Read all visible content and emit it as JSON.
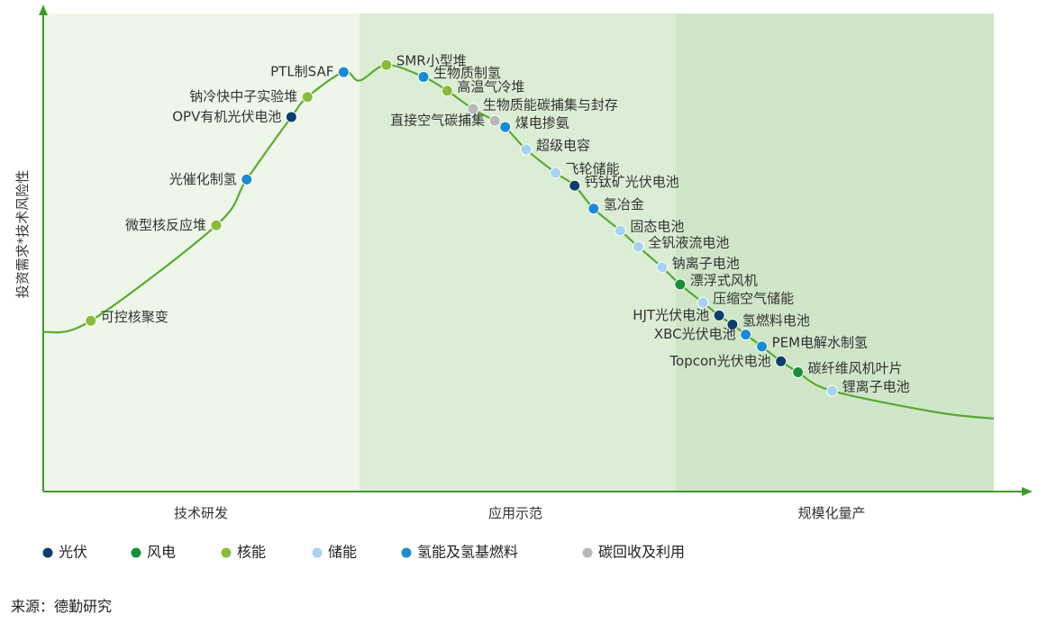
{
  "chart_data": {
    "type": "scatter",
    "title": "",
    "ylabel": "投资需求*技术风险性",
    "xlabel": "",
    "stages": [
      "技术研发",
      "应用示范",
      "规模化量产"
    ],
    "stage_colors": [
      "#eef6ea",
      "#dcedd6",
      "#cfe6c8"
    ],
    "curve_color": "#5aaa32",
    "xlim": [
      0,
      100
    ],
    "ylim": [
      0,
      100
    ],
    "series": [
      {
        "name": "光伏",
        "color": "#0d3e6a"
      },
      {
        "name": "风电",
        "color": "#1a8f3a"
      },
      {
        "name": "核能",
        "color": "#8cba3a"
      },
      {
        "name": "储能",
        "color": "#a7d3f0"
      },
      {
        "name": "氢能及氢基燃料",
        "color": "#1b8ad1"
      },
      {
        "name": "碳回收及利用",
        "color": "#b8b8b8"
      }
    ],
    "points": [
      {
        "label": "可控核聚变",
        "series": "核能",
        "x": 5.0,
        "y": 35.8,
        "label_side": "right"
      },
      {
        "label": "微型核反应堆",
        "series": "核能",
        "x": 18.2,
        "y": 55.8,
        "label_side": "left"
      },
      {
        "label": "光催化制氢",
        "series": "氢能及氢基燃料",
        "x": 21.4,
        "y": 65.4,
        "label_side": "left"
      },
      {
        "label": "OPV有机光伏电池",
        "series": "光伏",
        "x": 26.1,
        "y": 78.5,
        "label_side": "left"
      },
      {
        "label": "钠冷快中子实验堆",
        "series": "核能",
        "x": 27.8,
        "y": 82.7,
        "label_side": "left"
      },
      {
        "label": "PTL制SAF",
        "series": "氢能及氢基燃料",
        "x": 31.6,
        "y": 87.9,
        "label_side": "left"
      },
      {
        "label": "SMR小型堆",
        "series": "核能",
        "x": 36.1,
        "y": 89.4,
        "label_side": "right"
      },
      {
        "label": "生物质制氢",
        "series": "氢能及氢基燃料",
        "x": 40.0,
        "y": 86.9,
        "label_side": "right"
      },
      {
        "label": "高温气冷堆",
        "series": "核能",
        "x": 42.5,
        "y": 84.0,
        "label_side": "right"
      },
      {
        "label": "生物质能碳捕集与封存",
        "series": "碳回收及利用",
        "x": 45.2,
        "y": 80.2,
        "label_side": "right"
      },
      {
        "label": "直接空气碳捕集",
        "series": "碳回收及利用",
        "x": 47.5,
        "y": 77.7,
        "label_side": "left"
      },
      {
        "label": "煤电掺氨",
        "series": "氢能及氢基燃料",
        "x": 48.6,
        "y": 76.4,
        "label_side": "right"
      },
      {
        "label": "超级电容",
        "series": "储能",
        "x": 50.8,
        "y": 71.7,
        "label_side": "right"
      },
      {
        "label": "飞轮储能",
        "series": "储能",
        "x": 53.9,
        "y": 66.8,
        "label_side": "right"
      },
      {
        "label": "钙钛矿光伏电池",
        "series": "光伏",
        "x": 55.9,
        "y": 64.1,
        "label_side": "right"
      },
      {
        "label": "氢冶金",
        "series": "氢能及氢基燃料",
        "x": 57.9,
        "y": 59.3,
        "label_side": "right"
      },
      {
        "label": "固态电池",
        "series": "储能",
        "x": 60.7,
        "y": 54.7,
        "label_side": "right"
      },
      {
        "label": "全钒液流电池",
        "series": "储能",
        "x": 62.6,
        "y": 51.3,
        "label_side": "right"
      },
      {
        "label": "钠离子电池",
        "series": "储能",
        "x": 65.1,
        "y": 47.0,
        "label_side": "right"
      },
      {
        "label": "漂浮式风机",
        "series": "风电",
        "x": 67.0,
        "y": 43.4,
        "label_side": "right"
      },
      {
        "label": "压缩空气储能",
        "series": "储能",
        "x": 69.4,
        "y": 39.6,
        "label_side": "right"
      },
      {
        "label": "HJT光伏电池",
        "series": "光伏",
        "x": 71.1,
        "y": 36.9,
        "label_side": "left"
      },
      {
        "label": "氢燃料电池",
        "series": "光伏",
        "x": 72.5,
        "y": 35.0,
        "label_side": "right"
      },
      {
        "label": "XBC光伏电池",
        "series": "氢能及氢基燃料",
        "x": 73.9,
        "y": 32.9,
        "label_side": "left"
      },
      {
        "label": "PEM电解水制氢",
        "series": "氢能及氢基燃料",
        "x": 75.6,
        "y": 30.4,
        "label_side": "right"
      },
      {
        "label": "Topcon光伏电池",
        "series": "光伏",
        "x": 77.6,
        "y": 27.3,
        "label_side": "left"
      },
      {
        "label": "碳纤维风机叶片",
        "series": "风电",
        "x": 79.4,
        "y": 25.0,
        "label_side": "right"
      },
      {
        "label": "锂离子电池",
        "series": "储能",
        "x": 83.0,
        "y": 21.1,
        "label_side": "right"
      }
    ]
  },
  "source_text": "来源：德勤研究"
}
